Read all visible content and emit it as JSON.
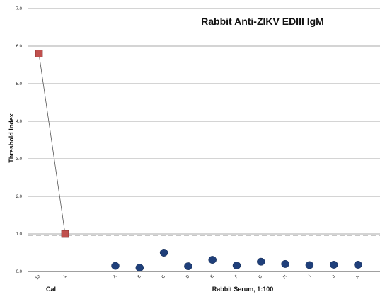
{
  "chart_data": {
    "type": "scatter",
    "title": "Rabbit Anti-ZIKV EDIII IgM",
    "ylabel": "Threshold Index",
    "ylim": [
      0,
      7
    ],
    "yticks": [
      "0.0",
      "1.0",
      "2.0",
      "3.0",
      "4.0",
      "5.0",
      "6.0",
      "7.0"
    ],
    "grid": true,
    "cutoff": 0.97,
    "groups": [
      {
        "label": "Cal",
        "categories": [
          "10",
          "1"
        ]
      },
      {
        "label": "Rabbit Serum, 1:100",
        "categories": [
          "A",
          "B",
          "C",
          "D",
          "E",
          "F",
          "G",
          "H",
          "I",
          "J",
          "K"
        ]
      }
    ],
    "series": [
      {
        "marker": "square",
        "color": "#c0504d",
        "connected": true,
        "points": [
          {
            "x": "10",
            "y": 5.8
          },
          {
            "x": "1",
            "y": 1.0
          }
        ]
      },
      {
        "marker": "circle",
        "color": "#1f3f7a",
        "connected": false,
        "points": [
          {
            "x": "A",
            "y": 0.15
          },
          {
            "x": "B",
            "y": 0.1
          },
          {
            "x": "C",
            "y": 0.5
          },
          {
            "x": "D",
            "y": 0.14
          },
          {
            "x": "E",
            "y": 0.31
          },
          {
            "x": "F",
            "y": 0.16
          },
          {
            "x": "G",
            "y": 0.26
          },
          {
            "x": "H",
            "y": 0.2
          },
          {
            "x": "I",
            "y": 0.17
          },
          {
            "x": "J",
            "y": 0.18
          },
          {
            "x": "K",
            "y": 0.18
          }
        ]
      }
    ]
  }
}
